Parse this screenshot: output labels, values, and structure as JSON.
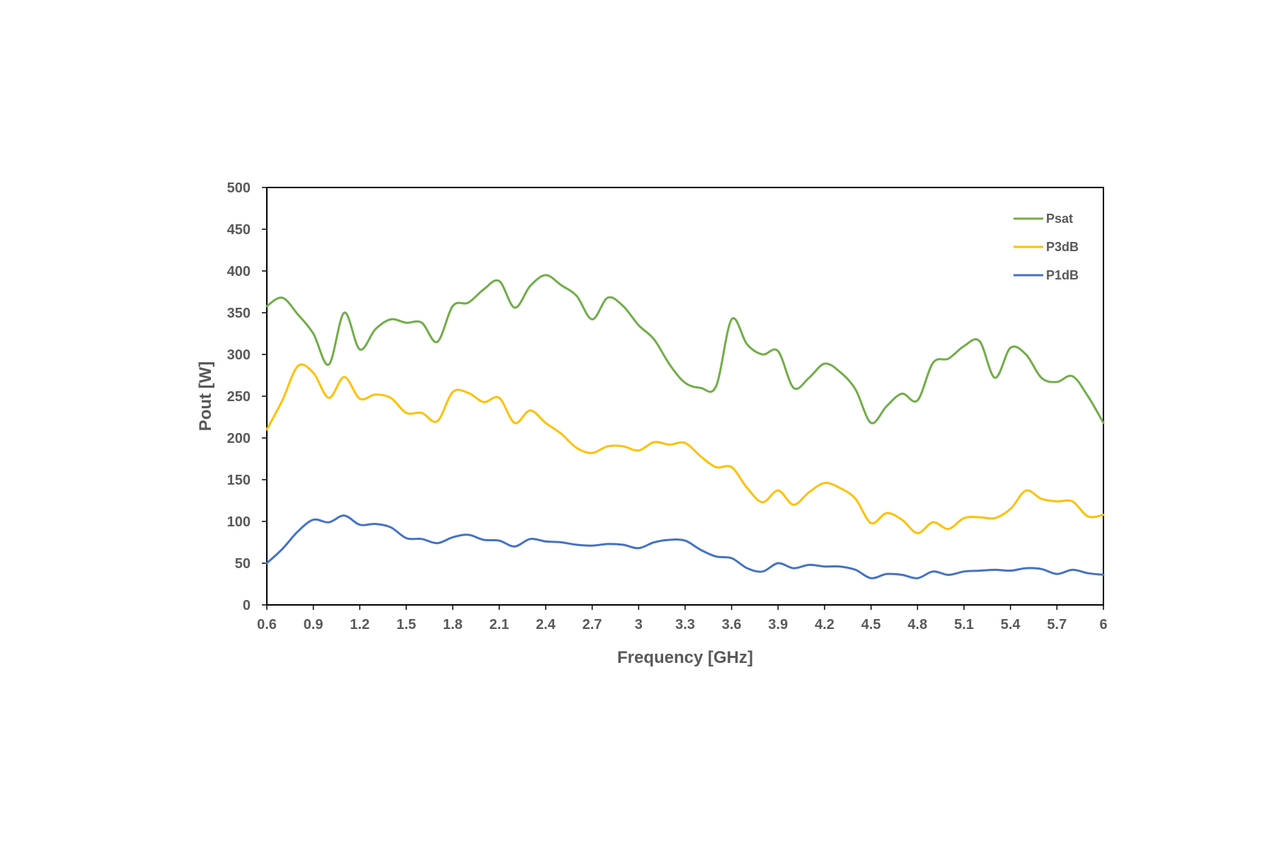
{
  "chart_data": {
    "type": "line",
    "xlabel": "Frequency [GHz]",
    "ylabel": "Pout  [W]",
    "xlim": [
      0.6,
      6
    ],
    "ylim": [
      0,
      500
    ],
    "x_ticks": [
      "0.6",
      "0.9",
      "1.2",
      "1.5",
      "1.8",
      "2.1",
      "2.4",
      "2.7",
      "3",
      "3.3",
      "3.6",
      "3.9",
      "4.2",
      "4.5",
      "4.8",
      "5.1",
      "5.4",
      "5.7",
      "6"
    ],
    "y_ticks": [
      "0",
      "50",
      "100",
      "150",
      "200",
      "250",
      "300",
      "350",
      "400",
      "450",
      "500"
    ],
    "grid": false,
    "legend_position": "top-right",
    "x": [
      0.6,
      0.7,
      0.8,
      0.9,
      1.0,
      1.1,
      1.2,
      1.3,
      1.4,
      1.5,
      1.6,
      1.7,
      1.8,
      1.9,
      2.0,
      2.1,
      2.2,
      2.3,
      2.4,
      2.5,
      2.6,
      2.7,
      2.8,
      2.9,
      3.0,
      3.1,
      3.2,
      3.3,
      3.4,
      3.5,
      3.6,
      3.7,
      3.8,
      3.9,
      4.0,
      4.1,
      4.2,
      4.3,
      4.4,
      4.5,
      4.6,
      4.7,
      4.8,
      4.9,
      5.0,
      5.1,
      5.2,
      5.3,
      5.4,
      5.5,
      5.6,
      5.7,
      5.8,
      5.9,
      6.0
    ],
    "series": [
      {
        "name": "Psat",
        "color": "#70AD47",
        "values": [
          358,
          368,
          348,
          325,
          288,
          350,
          306,
          330,
          342,
          338,
          338,
          315,
          358,
          362,
          378,
          388,
          356,
          382,
          395,
          383,
          370,
          342,
          368,
          358,
          335,
          318,
          288,
          266,
          260,
          262,
          342,
          312,
          300,
          304,
          260,
          272,
          289,
          279,
          258,
          218,
          238,
          253,
          245,
          290,
          295,
          310,
          316,
          272,
          308,
          300,
          272,
          267,
          274,
          250,
          218
        ]
      },
      {
        "name": "P3dB",
        "color": "#FFC000",
        "values": [
          210,
          245,
          286,
          278,
          248,
          273,
          247,
          252,
          248,
          230,
          230,
          220,
          255,
          254,
          243,
          248,
          218,
          233,
          218,
          205,
          188,
          182,
          190,
          190,
          185,
          195,
          192,
          194,
          178,
          165,
          165,
          140,
          123,
          137,
          120,
          135,
          146,
          140,
          127,
          98,
          110,
          102,
          86,
          99,
          91,
          104,
          105,
          104,
          115,
          137,
          127,
          124,
          124,
          106,
          108
        ]
      },
      {
        "name": "P1dB",
        "color": "#4472C4",
        "values": [
          50,
          67,
          88,
          102,
          99,
          107,
          96,
          97,
          93,
          80,
          79,
          74,
          81,
          84,
          78,
          77,
          70,
          79,
          76,
          75,
          72,
          71,
          73,
          72,
          68,
          75,
          78,
          77,
          66,
          58,
          56,
          44,
          40,
          50,
          44,
          48,
          46,
          46,
          42,
          32,
          37,
          36,
          32,
          40,
          36,
          40,
          41,
          42,
          41,
          44,
          43,
          37,
          42,
          38,
          36
        ]
      }
    ]
  }
}
